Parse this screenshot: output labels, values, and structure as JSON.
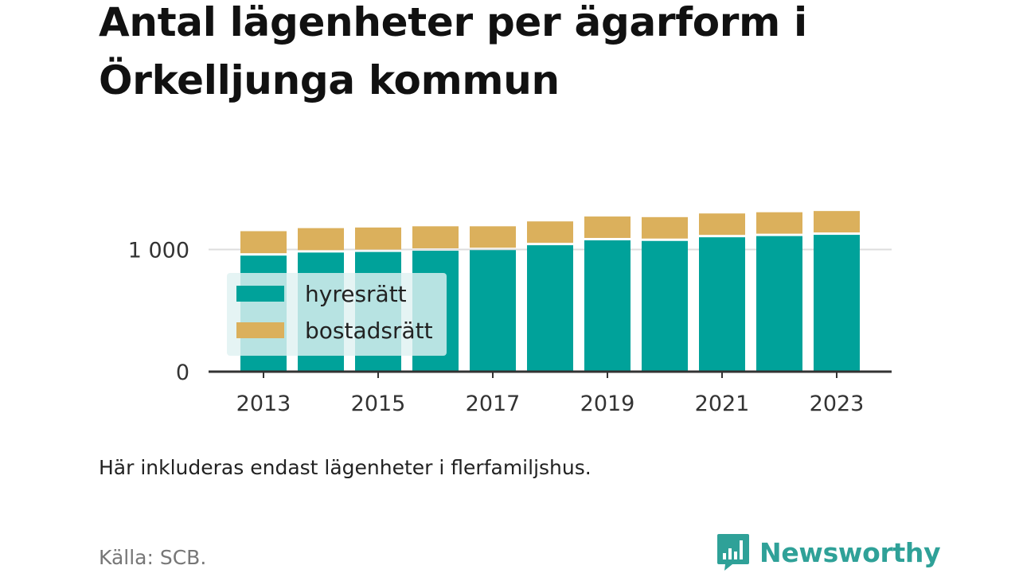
{
  "title": "Antal lägenheter per ägarform i Örkelljunga kommun",
  "note": "Här inkluderas endast lägenheter i flerfamiljshus.",
  "source": "Källa: SCB.",
  "brand": {
    "name": "Newsworthy",
    "icon": "newsworthy-logo-icon",
    "color": "#2fa198"
  },
  "chart_data": {
    "type": "bar",
    "stacked": true,
    "categories": [
      "2013",
      "2014",
      "2015",
      "2016",
      "2017",
      "2018",
      "2019",
      "2020",
      "2021",
      "2022",
      "2023"
    ],
    "x_tick_labels": [
      "2013",
      "2015",
      "2017",
      "2019",
      "2021",
      "2023"
    ],
    "y_tick_labels": [
      "0",
      "1 000"
    ],
    "y_ticks": [
      0,
      1000
    ],
    "ylim": [
      0,
      1400
    ],
    "series": [
      {
        "name": "hyresrätt",
        "color": "#00a29a",
        "values": [
          950,
          975,
          980,
          990,
          995,
          1035,
          1075,
          1070,
          1100,
          1110,
          1120
        ]
      },
      {
        "name": "bostadsrätt",
        "color": "#dbb05c",
        "values": [
          200,
          200,
          200,
          200,
          195,
          195,
          195,
          195,
          195,
          195,
          195
        ]
      }
    ],
    "grid": true,
    "legend_position": "bottom-left"
  }
}
